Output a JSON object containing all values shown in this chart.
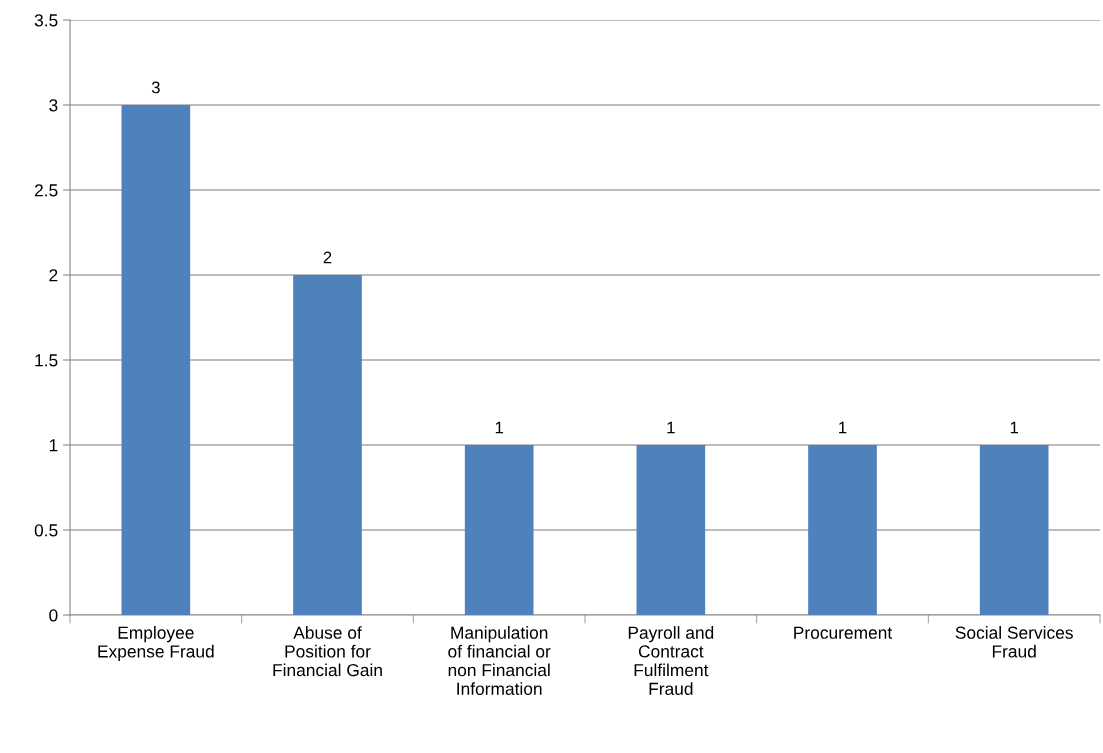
{
  "chart_data": {
    "type": "bar",
    "categories": [
      "Employee\nExpense Fraud",
      "Abuse of\nPosition for\nFinancial Gain",
      "Manipulation\nof financial or\nnon Financial\nInformation",
      "Payroll and\nContract\nFulfilment\nFraud",
      "Procurement",
      "Social Services\nFraud"
    ],
    "values": [
      3,
      2,
      1,
      1,
      1,
      1
    ],
    "color": "#4f81bd",
    "ylim": [
      0,
      3.5
    ],
    "yticks": [
      0,
      0.5,
      1,
      1.5,
      2,
      2.5,
      3,
      3.5
    ],
    "grid": "y",
    "data_labels": true
  }
}
